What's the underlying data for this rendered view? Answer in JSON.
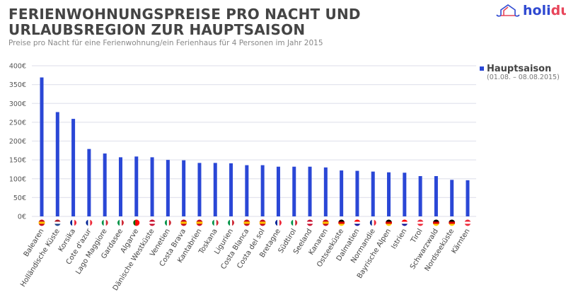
{
  "header": {
    "title": "FERIENWOHNUNGSPREISE PRO NACHT UND URLAUBSREGION ZUR HAUPTSAISON",
    "subtitle": "Preise pro Nacht für eine Ferienwohnung/ein Ferienhaus für 4 Personen im Jahr 2015",
    "logo": "holidu"
  },
  "legend": {
    "name": "Hauptsaison",
    "period": "(01.08. – 08.08.2015)"
  },
  "chart_data": {
    "type": "bar",
    "title": "FERIENWOHNUNGSPREISE PRO NACHT UND URLAUBSREGION ZUR HAUPTSAISON",
    "ylim": [
      0,
      400
    ],
    "yticks": [
      "0€",
      "50€",
      "100€",
      "150€",
      "200€",
      "250€",
      "300€",
      "350€",
      "400€"
    ],
    "grid": true,
    "legend_position": "top-right",
    "bar_color": "#2a47d6",
    "categories": [
      "Balearen",
      "Holländische Küste",
      "Korsika",
      "Cote d'azur",
      "Lago Maggiore",
      "Gardasee",
      "Algarve",
      "Dänische Westküste",
      "Venetien",
      "Costa Brava",
      "Kantabrien",
      "Toskana",
      "Ligurien",
      "Costa Blanca",
      "Costa del sol",
      "Bretagne",
      "Südtirol",
      "Seeland",
      "Kanaren",
      "Ostseeküste",
      "Dalmatien",
      "Normandie",
      "Bayrische Alpen",
      "Istrien",
      "Tirol",
      "Schwarzwald",
      "Nordseeküste",
      "Kärnten"
    ],
    "flags": [
      "ES",
      "NL",
      "FR",
      "FR",
      "IT",
      "IT",
      "PT",
      "DK",
      "IT",
      "ES",
      "ES",
      "IT",
      "IT",
      "ES",
      "ES",
      "FR",
      "IT",
      "DK",
      "ES",
      "DE",
      "HR",
      "FR",
      "DE",
      "HR",
      "AT",
      "DE",
      "DE",
      "AT"
    ],
    "series": [
      {
        "name": "Hauptsaison",
        "values": [
          369,
          277,
          259,
          179,
          167,
          157,
          159,
          157,
          150,
          149,
          142,
          142,
          141,
          136,
          136,
          132,
          132,
          132,
          130,
          122,
          121,
          119,
          117,
          116,
          107,
          107,
          97,
          96
        ]
      }
    ]
  }
}
